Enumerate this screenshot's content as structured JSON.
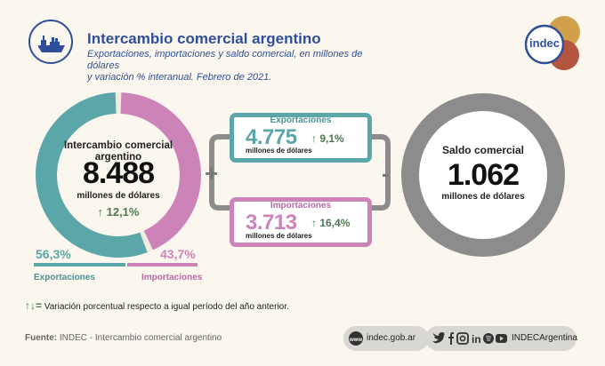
{
  "header": {
    "title": "Intercambio comercial argentino",
    "subtitle_line1": "Exportaciones, importaciones y saldo comercial, en millones de dólares",
    "subtitle_line2": "y variación % interanual. Febrero de 2021.",
    "logo_text": "indec"
  },
  "colors": {
    "exports": "#5aa6a8",
    "imports": "#cc84b8",
    "balance": "#8c8c8c",
    "title": "#2f4f9a",
    "positive": "#4c7a4e"
  },
  "total": {
    "label_line1": "Intercambio comercial",
    "label_line2": "argentino",
    "value": "8.488",
    "unit": "millones de dólares",
    "variation": "↑ 12,1%",
    "exports_share": 56.3,
    "imports_share": 43.7
  },
  "share": {
    "exports_pct": "56,3%",
    "imports_pct": "43,7%",
    "exports_label": "Exportaciones",
    "imports_label": "Importaciones"
  },
  "exports_card": {
    "title": "Exportaciones",
    "value": "4.775",
    "unit": "millones de dólares",
    "variation": "↑ 9,1%"
  },
  "imports_card": {
    "title": "Importaciones",
    "value": "3.713",
    "unit": "millones de dólares",
    "variation": "↑ 16,4%"
  },
  "operators": {
    "plus": "+",
    "minus": "-"
  },
  "balance": {
    "label": "Saldo comercial",
    "value": "1.062",
    "unit": "millones de dólares"
  },
  "legend": {
    "symbol": "↑↓=",
    "text": "Variación porcentual respecto a igual período del año anterior."
  },
  "footer": {
    "source_label": "Fuente:",
    "source_text": "INDEC - Intercambio comercial argentino",
    "website": "indec.gob.ar",
    "social_handle": "INDECArgentina"
  }
}
